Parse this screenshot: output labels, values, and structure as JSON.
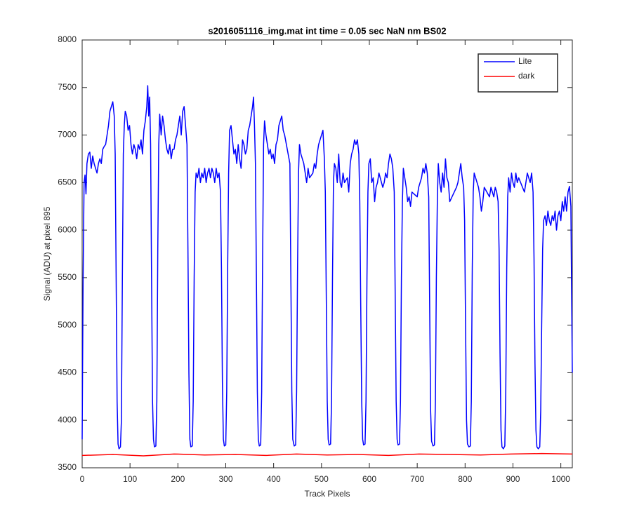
{
  "chart_data": {
    "type": "line",
    "title": "s2016051116_img.mat int time = 0.05 sec  NaN nm BS02",
    "xlabel": "Track Pixels",
    "ylabel": "Signal (ADU) at pixel 895",
    "xlim": [
      0,
      1024
    ],
    "xticks": [
      0,
      100,
      200,
      300,
      400,
      500,
      600,
      700,
      800,
      900,
      1000
    ],
    "ylim": [
      3500,
      8000
    ],
    "yticks": [
      3500,
      4000,
      4500,
      5000,
      5500,
      6000,
      6500,
      7000,
      7500,
      8000
    ],
    "legend": "northeast",
    "series": [
      {
        "name": "Lite",
        "color": "#0000ff",
        "x": [
          0,
          2,
          4,
          6,
          8,
          10,
          13,
          16,
          19,
          22,
          25,
          28,
          31,
          34,
          37,
          40,
          43,
          46,
          49,
          52,
          55,
          58,
          61,
          64,
          67,
          69,
          71,
          73,
          75,
          77,
          80,
          82,
          84,
          86,
          88,
          90,
          93,
          96,
          99,
          102,
          105,
          108,
          111,
          114,
          117,
          120,
          123,
          126,
          129,
          132,
          135,
          137,
          139,
          141,
          143,
          145,
          147,
          149,
          151,
          154,
          156,
          158,
          160,
          162,
          165,
          168,
          171,
          174,
          177,
          180,
          183,
          186,
          189,
          192,
          195,
          198,
          201,
          204,
          207,
          210,
          213,
          216,
          219,
          221,
          223,
          225,
          227,
          230,
          232,
          234,
          236,
          238,
          241,
          244,
          247,
          250,
          253,
          256,
          259,
          262,
          265,
          268,
          271,
          274,
          277,
          280,
          283,
          286,
          289,
          291,
          293,
          295,
          297,
          300,
          302,
          304,
          306,
          308,
          311,
          314,
          317,
          320,
          323,
          326,
          329,
          332,
          335,
          338,
          341,
          344,
          347,
          350,
          353,
          356,
          358,
          360,
          362,
          364,
          366,
          368,
          370,
          373,
          375,
          377,
          379,
          381,
          384,
          387,
          390,
          393,
          396,
          399,
          402,
          405,
          408,
          411,
          414,
          417,
          420,
          423,
          434,
          436,
          438,
          440,
          443,
          446,
          448,
          450,
          452,
          454,
          457,
          460,
          463,
          466,
          469,
          472,
          475,
          482,
          485,
          488,
          491,
          494,
          497,
          500,
          503,
          506,
          508,
          510,
          512,
          514,
          516,
          519,
          521,
          523,
          525,
          527,
          530,
          533,
          536,
          539,
          542,
          545,
          548,
          554,
          557,
          560,
          563,
          566,
          569,
          572,
          575,
          578,
          580,
          582,
          584,
          586,
          588,
          591,
          593,
          595,
          597,
          599,
          602,
          605,
          608,
          611,
          614,
          617,
          620,
          628,
          631,
          634,
          637,
          640,
          643,
          646,
          649,
          652,
          654,
          656,
          658,
          660,
          663,
          665,
          667,
          669,
          671,
          674,
          677,
          680,
          683,
          686,
          689,
          700,
          703,
          706,
          709,
          712,
          715,
          718,
          721,
          724,
          726,
          728,
          730,
          733,
          736,
          738,
          740,
          742,
          744,
          747,
          750,
          753,
          756,
          759,
          762,
          765,
          768,
          782,
          785,
          788,
          791,
          794,
          797,
          799,
          801,
          803,
          805,
          808,
          811,
          813,
          815,
          817,
          819,
          822,
          825,
          828,
          831,
          834,
          837,
          840,
          851,
          854,
          857,
          860,
          863,
          866,
          869,
          871,
          873,
          875,
          877,
          880,
          883,
          885,
          887,
          889,
          891,
          894,
          897,
          900,
          903,
          906,
          909,
          912,
          924,
          927,
          930,
          933,
          936,
          939,
          942,
          944,
          946,
          948,
          950,
          953,
          956,
          958,
          960,
          962,
          964,
          967,
          970,
          973,
          976,
          979,
          982,
          985,
          988,
          991,
          994,
          997,
          1000,
          1003,
          1006,
          1009,
          1012,
          1015,
          1018,
          1021,
          1024
        ],
        "values": [
          3800,
          5500,
          6500,
          6580,
          6380,
          6700,
          6800,
          6820,
          6650,
          6780,
          6700,
          6650,
          6600,
          6700,
          6750,
          6700,
          6850,
          6880,
          6900,
          7000,
          7100,
          7250,
          7300,
          7350,
          7200,
          6800,
          5500,
          4200,
          3750,
          3700,
          3720,
          4000,
          5500,
          6800,
          7100,
          7250,
          7200,
          7050,
          7100,
          6900,
          6800,
          6900,
          6850,
          6750,
          6900,
          6850,
          6950,
          6800,
          7050,
          7150,
          7300,
          7520,
          7200,
          7400,
          6900,
          5500,
          4200,
          3800,
          3720,
          3730,
          4200,
          5800,
          6900,
          7220,
          7000,
          7200,
          7100,
          6950,
          6850,
          6800,
          6900,
          6750,
          6850,
          6850,
          6950,
          7000,
          7100,
          7200,
          7000,
          7250,
          7300,
          7100,
          6900,
          5800,
          4500,
          3800,
          3720,
          3730,
          4200,
          5500,
          6400,
          6600,
          6550,
          6650,
          6500,
          6600,
          6550,
          6650,
          6500,
          6600,
          6650,
          6550,
          6650,
          6600,
          6500,
          6650,
          6550,
          6600,
          6400,
          5600,
          4400,
          3800,
          3730,
          3740,
          4300,
          5600,
          6600,
          7050,
          7100,
          6950,
          6800,
          6850,
          6700,
          6900,
          6750,
          6650,
          6950,
          6900,
          6800,
          6850,
          7050,
          7100,
          7200,
          7300,
          7400,
          7100,
          6700,
          5500,
          4300,
          3800,
          3730,
          3740,
          4300,
          5700,
          6900,
          7150,
          7000,
          6900,
          6800,
          6850,
          6750,
          6800,
          6700,
          6900,
          6950,
          7100,
          7150,
          7200,
          7050,
          7000,
          6700,
          5500,
          4300,
          3800,
          3730,
          3740,
          4300,
          5600,
          6600,
          6900,
          6800,
          6750,
          6700,
          6600,
          6500,
          6650,
          6550,
          6600,
          6700,
          6650,
          6800,
          6900,
          6950,
          7000,
          7050,
          6750,
          6400,
          5300,
          4200,
          3800,
          3740,
          3750,
          4200,
          5500,
          6500,
          6700,
          6650,
          6500,
          6800,
          6500,
          6450,
          6600,
          6500,
          6550,
          6400,
          6700,
          6800,
          6850,
          6950,
          6900,
          6950,
          6800,
          6300,
          5200,
          4200,
          3800,
          3740,
          3750,
          4200,
          5500,
          6400,
          6700,
          6750,
          6500,
          6550,
          6300,
          6450,
          6500,
          6600,
          6450,
          6500,
          6600,
          6550,
          6700,
          6800,
          6750,
          6650,
          6400,
          5300,
          4200,
          3800,
          3740,
          3750,
          4200,
          5500,
          6300,
          6650,
          6550,
          6450,
          6300,
          6350,
          6250,
          6400,
          6350,
          6450,
          6500,
          6550,
          6650,
          6600,
          6700,
          6600,
          6350,
          5200,
          4100,
          3780,
          3730,
          3740,
          4200,
          5500,
          6300,
          6700,
          6500,
          6400,
          6600,
          6450,
          6750,
          6550,
          6500,
          6300,
          6450,
          6500,
          6600,
          6700,
          6550,
          6450,
          6100,
          5000,
          4000,
          3750,
          3720,
          3730,
          4200,
          5600,
          6400,
          6600,
          6550,
          6500,
          6450,
          6350,
          6200,
          6300,
          6450,
          6350,
          6450,
          6400,
          6350,
          6450,
          6400,
          6300,
          5800,
          4700,
          3900,
          3720,
          3700,
          3730,
          4300,
          5600,
          6350,
          6550,
          6400,
          6600,
          6500,
          6450,
          6600,
          6500,
          6550,
          6400,
          6500,
          6600,
          6550,
          6500,
          6600,
          6400,
          5700,
          4600,
          3900,
          3720,
          3700,
          3720,
          4100,
          5000,
          5800,
          6100,
          6150,
          6050,
          6200,
          6100,
          6050,
          6150,
          6100,
          6200,
          6000,
          6150,
          6200,
          6100,
          6300,
          6200,
          6350,
          6200,
          6400,
          6460,
          6250,
          4500
        ]
      },
      {
        "name": "dark",
        "color": "#ff0000",
        "x": [
          0,
          64,
          128,
          192,
          256,
          320,
          384,
          448,
          512,
          576,
          640,
          704,
          768,
          832,
          896,
          960,
          1024
        ],
        "values": [
          3630,
          3640,
          3625,
          3645,
          3635,
          3640,
          3630,
          3645,
          3635,
          3640,
          3630,
          3645,
          3640,
          3635,
          3645,
          3650,
          3645
        ]
      }
    ]
  }
}
